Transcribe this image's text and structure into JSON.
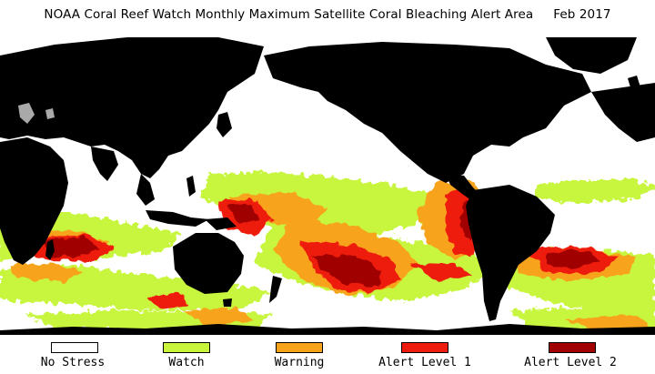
{
  "header": {
    "title": "NOAA Coral Reef Watch Monthly Maximum Satellite Coral Bleaching Alert Area",
    "date": "Feb 2017"
  },
  "map": {
    "land_color": "#000000",
    "lake_color": "#a9a9a9",
    "region_count_note": null
  },
  "legend": {
    "items": [
      {
        "label": "No Stress",
        "color": "#ffffff"
      },
      {
        "label": "Watch",
        "color": "#c8f53c"
      },
      {
        "label": "Warning",
        "color": "#f7a41c"
      },
      {
        "label": "Alert Level 1",
        "color": "#ee1c0e"
      },
      {
        "label": "Alert Level 2",
        "color": "#a00000"
      }
    ]
  }
}
